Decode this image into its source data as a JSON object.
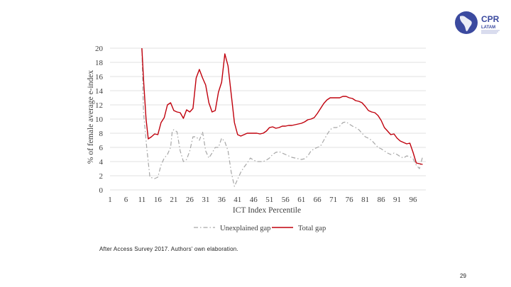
{
  "logo": {
    "name": "CPR",
    "sub": "LATAM"
  },
  "source_note": "After Access Survey 2017. Authors' own elaboration.",
  "page_number": "29",
  "chart_data": {
    "type": "line",
    "xlabel": "ICT Index Percentile",
    "ylabel": "% of female average e-index",
    "ylim": [
      0,
      20
    ],
    "xlim": [
      1,
      100
    ],
    "yticks": [
      0,
      2,
      4,
      6,
      8,
      10,
      12,
      14,
      16,
      18,
      20
    ],
    "xticks": [
      1,
      6,
      11,
      16,
      21,
      26,
      31,
      36,
      41,
      46,
      51,
      56,
      61,
      66,
      71,
      76,
      81,
      86,
      91,
      96
    ],
    "grid": "horizontal",
    "legend": "bottom-center",
    "series": [
      {
        "name": "Unexplained gap",
        "color": "#a6a6a6",
        "style": "dashdot",
        "points": [
          [
            11,
            20
          ],
          [
            11.5,
            11
          ],
          [
            12.5,
            6
          ],
          [
            13.5,
            1.8
          ],
          [
            15,
            1.6
          ],
          [
            16,
            1.8
          ],
          [
            17,
            3.5
          ],
          [
            18,
            4.5
          ],
          [
            19,
            5
          ],
          [
            20,
            6
          ],
          [
            20.5,
            8.3
          ],
          [
            21,
            8.5
          ],
          [
            22,
            8.2
          ],
          [
            23,
            5.5
          ],
          [
            24,
            4
          ],
          [
            25,
            4.3
          ],
          [
            26,
            5.5
          ],
          [
            27,
            7.5
          ],
          [
            28,
            7.5
          ],
          [
            29,
            7
          ],
          [
            30,
            8.2
          ],
          [
            31,
            5.5
          ],
          [
            32,
            4.5
          ],
          [
            33,
            5.2
          ],
          [
            34,
            6
          ],
          [
            35,
            6
          ],
          [
            36,
            7.3
          ],
          [
            37,
            6.8
          ],
          [
            38,
            5.5
          ],
          [
            39,
            2.5
          ],
          [
            40,
            0.5
          ],
          [
            41,
            1.5
          ],
          [
            42,
            2.5
          ],
          [
            43,
            3.2
          ],
          [
            44,
            3.8
          ],
          [
            45,
            4.5
          ],
          [
            46,
            4.2
          ],
          [
            47,
            4
          ],
          [
            48,
            4
          ],
          [
            49,
            4
          ],
          [
            50,
            4.2
          ],
          [
            51,
            4.5
          ],
          [
            52,
            5
          ],
          [
            53,
            5.3
          ],
          [
            54,
            5.4
          ],
          [
            55,
            5.2
          ],
          [
            56,
            5
          ],
          [
            57,
            4.8
          ],
          [
            58,
            4.6
          ],
          [
            59,
            4.5
          ],
          [
            60,
            4.4
          ],
          [
            61,
            4.3
          ],
          [
            62,
            4.4
          ],
          [
            63,
            4.8
          ],
          [
            64,
            5.5
          ],
          [
            65,
            5.8
          ],
          [
            66,
            6
          ],
          [
            67,
            6.2
          ],
          [
            68,
            7
          ],
          [
            69,
            7.8
          ],
          [
            70,
            8.5
          ],
          [
            71,
            8.8
          ],
          [
            72,
            8.8
          ],
          [
            73,
            9
          ],
          [
            74,
            9.5
          ],
          [
            75,
            9.6
          ],
          [
            76,
            9.3
          ],
          [
            77,
            9
          ],
          [
            78,
            8.8
          ],
          [
            79,
            8.5
          ],
          [
            80,
            8
          ],
          [
            81,
            7.5
          ],
          [
            82,
            7.3
          ],
          [
            83,
            7
          ],
          [
            84,
            6.5
          ],
          [
            85,
            6
          ],
          [
            86,
            5.8
          ],
          [
            87,
            5.5
          ],
          [
            88,
            5.2
          ],
          [
            89,
            5
          ],
          [
            90,
            5.2
          ],
          [
            91,
            5
          ],
          [
            92,
            4.7
          ],
          [
            93,
            4.5
          ],
          [
            94,
            4.8
          ],
          [
            95,
            4.7
          ],
          [
            96,
            4.4
          ],
          [
            97,
            3.5
          ],
          [
            98,
            3
          ],
          [
            99,
            4.7
          ]
        ]
      },
      {
        "name": "Total gap",
        "color": "#c0000c",
        "style": "solid",
        "points": [
          [
            11,
            20
          ],
          [
            11.6,
            15
          ],
          [
            12.3,
            10
          ],
          [
            13,
            7.2
          ],
          [
            14,
            7.5
          ],
          [
            15,
            7.9
          ],
          [
            16,
            7.8
          ],
          [
            17,
            9.5
          ],
          [
            18,
            10.2
          ],
          [
            19,
            12
          ],
          [
            20,
            12.3
          ],
          [
            21,
            11.2
          ],
          [
            22,
            11
          ],
          [
            23,
            10.9
          ],
          [
            24,
            10.1
          ],
          [
            25,
            11.3
          ],
          [
            26,
            11
          ],
          [
            27,
            11.5
          ],
          [
            28,
            15.8
          ],
          [
            29,
            17
          ],
          [
            30,
            15.8
          ],
          [
            31,
            14.8
          ],
          [
            32,
            12.3
          ],
          [
            33,
            11
          ],
          [
            34,
            11.2
          ],
          [
            35,
            13.8
          ],
          [
            36,
            15.2
          ],
          [
            37,
            19.2
          ],
          [
            38,
            17.5
          ],
          [
            39,
            13.5
          ],
          [
            40,
            9.5
          ],
          [
            41,
            7.8
          ],
          [
            42,
            7.6
          ],
          [
            43,
            7.8
          ],
          [
            44,
            8
          ],
          [
            45,
            8
          ],
          [
            46,
            8
          ],
          [
            47,
            8
          ],
          [
            48,
            7.9
          ],
          [
            49,
            8
          ],
          [
            50,
            8.3
          ],
          [
            51,
            8.8
          ],
          [
            52,
            8.9
          ],
          [
            53,
            8.7
          ],
          [
            54,
            8.8
          ],
          [
            55,
            9
          ],
          [
            56,
            9
          ],
          [
            57,
            9.1
          ],
          [
            58,
            9.1
          ],
          [
            59,
            9.2
          ],
          [
            60,
            9.3
          ],
          [
            61,
            9.4
          ],
          [
            62,
            9.6
          ],
          [
            63,
            9.9
          ],
          [
            64,
            10
          ],
          [
            65,
            10.2
          ],
          [
            66,
            10.8
          ],
          [
            67,
            11.5
          ],
          [
            68,
            12.2
          ],
          [
            69,
            12.7
          ],
          [
            70,
            13
          ],
          [
            71,
            13
          ],
          [
            72,
            13
          ],
          [
            73,
            13
          ],
          [
            74,
            13.2
          ],
          [
            75,
            13.2
          ],
          [
            76,
            13
          ],
          [
            77,
            12.9
          ],
          [
            78,
            12.6
          ],
          [
            79,
            12.5
          ],
          [
            80,
            12.3
          ],
          [
            81,
            11.8
          ],
          [
            82,
            11.2
          ],
          [
            83,
            11
          ],
          [
            84,
            10.9
          ],
          [
            85,
            10.5
          ],
          [
            86,
            9.8
          ],
          [
            87,
            8.8
          ],
          [
            88,
            8.3
          ],
          [
            89,
            7.8
          ],
          [
            90,
            7.9
          ],
          [
            91,
            7.3
          ],
          [
            92,
            6.9
          ],
          [
            93,
            6.7
          ],
          [
            94,
            6.5
          ],
          [
            95,
            6.6
          ],
          [
            96,
            5.3
          ],
          [
            97,
            3.8
          ],
          [
            98,
            3.7
          ],
          [
            99,
            3.6
          ]
        ]
      }
    ]
  }
}
